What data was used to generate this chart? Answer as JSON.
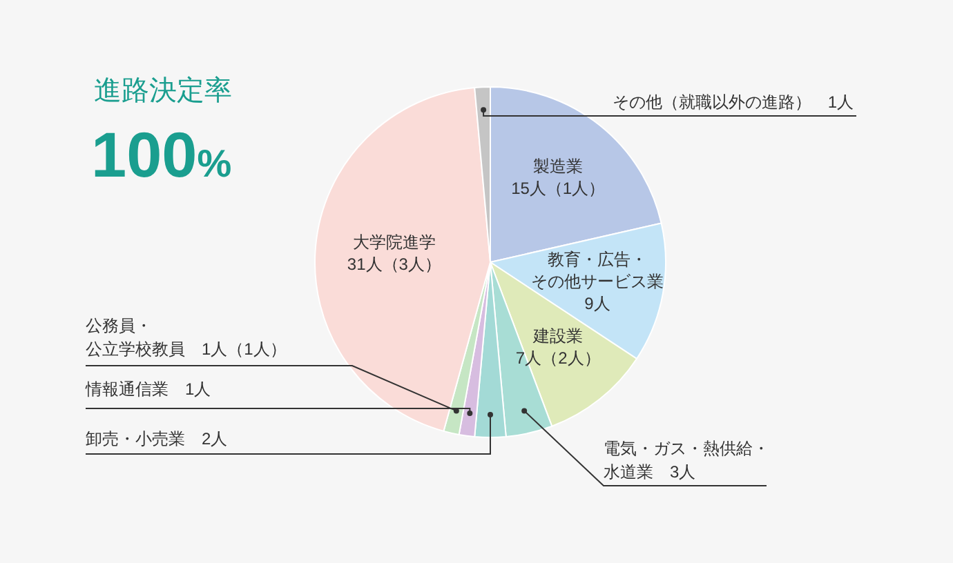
{
  "chart_data": {
    "type": "pie",
    "title": "進路決定率",
    "subtitle": "100%",
    "categories": [
      "製造業",
      "教育・広告・その他サービス業",
      "建設業",
      "電気・ガス・熱供給・水道業",
      "卸売・小売業",
      "情報通信業",
      "公務員・公立学校教員",
      "大学院進学",
      "その他（就職以外の進路）"
    ],
    "values": [
      15,
      9,
      7,
      3,
      2,
      1,
      1,
      31,
      1
    ],
    "value_labels": [
      "15人（1人）",
      "9人",
      "7人（2人）",
      "3人",
      "2人",
      "1人",
      "1人（1人）",
      "31人（3人）",
      "1人"
    ],
    "colors": [
      "#b7c7e7",
      "#c3e4f7",
      "#dfeab9",
      "#a8ddd5",
      "#a3dad6",
      "#d7bde0",
      "#c6e6c4",
      "#fadcd8",
      "#c5c5c5"
    ]
  }
}
